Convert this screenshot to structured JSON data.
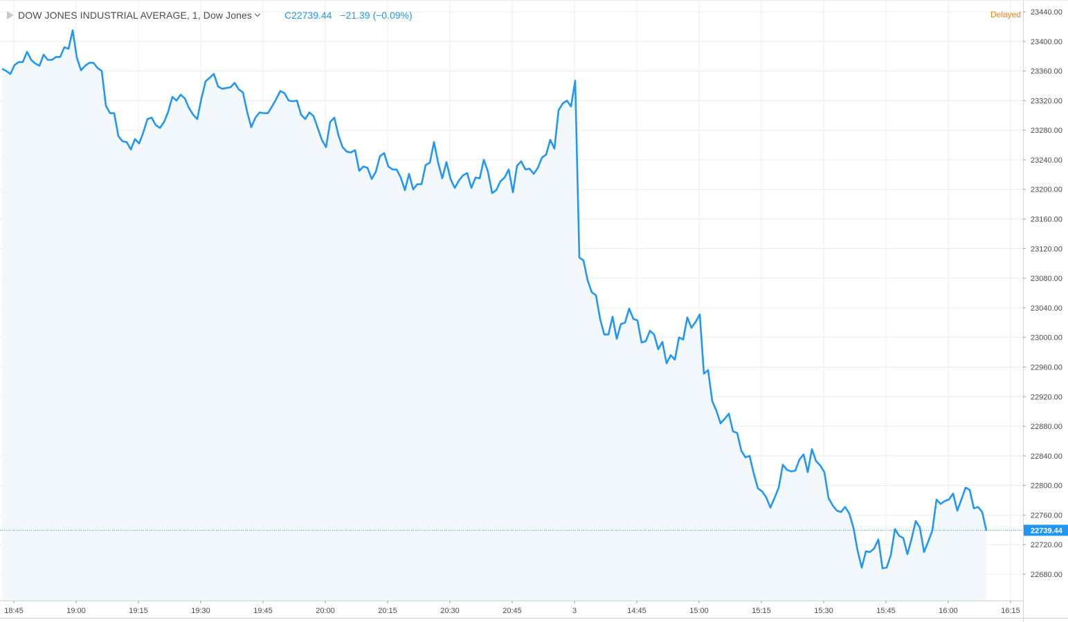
{
  "header": {
    "symbol_title": "DOW JONES INDUSTRIAL AVERAGE, 1, Dow Jones",
    "quote_close": "C22739.44",
    "quote_change": "−21.39 (−0.09%)",
    "status": "Delayed"
  },
  "colors": {
    "line": "#2196f3",
    "area": "#f3f8fd",
    "grid": "#e8ecf0",
    "price_label_bg": "#2196f3",
    "delayed": "#f57f17"
  },
  "icons": [
    "flag-icon",
    "chevron-down-icon"
  ],
  "chart_data": {
    "type": "area",
    "ylim": [
      22640,
      23460
    ],
    "y_ticks": [
      23440,
      23400,
      23360,
      23320,
      23280,
      23240,
      23200,
      23160,
      23120,
      23080,
      23040,
      23000,
      22960,
      22920,
      22880,
      22840,
      22800,
      22760,
      22720,
      22680
    ],
    "y_tick_labels": [
      "23440.00",
      "23400.00",
      "23360.00",
      "23320.00",
      "23280.00",
      "23240.00",
      "23200.00",
      "23160.00",
      "23120.00",
      "23080.00",
      "23040.00",
      "23000.00",
      "22960.00",
      "22920.00",
      "22880.00",
      "22840.00",
      "22800.00",
      "22760.00",
      "22720.00",
      "22680.00"
    ],
    "x_ticks": [
      {
        "label": "18:45",
        "i": 0
      },
      {
        "label": "19:00",
        "i": 15
      },
      {
        "label": "19:15",
        "i": 30
      },
      {
        "label": "19:30",
        "i": 45
      },
      {
        "label": "19:45",
        "i": 60
      },
      {
        "label": "20:00",
        "i": 75
      },
      {
        "label": "20:15",
        "i": 90
      },
      {
        "label": "20:30",
        "i": 105
      },
      {
        "label": "20:45",
        "i": 120
      },
      {
        "label": "3",
        "i": 135
      },
      {
        "label": "14:45",
        "i": 150
      },
      {
        "label": "15:00",
        "i": 165
      },
      {
        "label": "15:15",
        "i": 180
      },
      {
        "label": "15:30",
        "i": 195
      },
      {
        "label": "15:45",
        "i": 210
      },
      {
        "label": "16:00",
        "i": 225
      },
      {
        "label": "16:15",
        "i": 240
      }
    ],
    "series": [
      {
        "values": [
          23363,
          23360,
          23356,
          23368,
          23372,
          23372,
          23386,
          23375,
          23370,
          23367,
          23382,
          23375,
          23375,
          23379,
          23379,
          23392,
          23390,
          23415,
          23378,
          23361,
          23367,
          23371,
          23371,
          23364,
          23360,
          23313,
          23303,
          23303,
          23272,
          23265,
          23264,
          23254,
          23268,
          23262,
          23277,
          23295,
          23297,
          23287,
          23283,
          23291,
          23305,
          23325,
          23320,
          23328,
          23323,
          23310,
          23301,
          23295,
          23323,
          23346,
          23351,
          23356,
          23339,
          23336,
          23337,
          23338,
          23344,
          23335,
          23331,
          23305,
          23284,
          23297,
          23304,
          23303,
          23303,
          23312,
          23322,
          23333,
          23330,
          23320,
          23319,
          23320,
          23301,
          23295,
          23304,
          23299,
          23283,
          23267,
          23257,
          23291,
          23297,
          23273,
          23257,
          23251,
          23250,
          23253,
          23225,
          23231,
          23229,
          23214,
          23224,
          23245,
          23249,
          23231,
          23227,
          23227,
          23216,
          23199,
          23221,
          23200,
          23207,
          23207,
          23233,
          23236,
          23264,
          23236,
          23215,
          23237,
          23214,
          23202,
          23212,
          23219,
          23222,
          23202,
          23216,
          23215,
          23240,
          23224,
          23195,
          23199,
          23211,
          23216,
          23227,
          23196,
          23232,
          23238,
          23227,
          23228,
          23221,
          23229,
          23243,
          23247,
          23267,
          23255,
          23307,
          23316,
          23320,
          23312,
          23347,
          23108,
          23104,
          23077,
          23061,
          23057,
          23025,
          23004,
          23004,
          23028,
          22998,
          23018,
          23020,
          23039,
          23025,
          23023,
          22993,
          22995,
          23009,
          23004,
          22984,
          22994,
          22965,
          22976,
          22970,
          23000,
          22997,
          23027,
          23013,
          23021,
          23031,
          22951,
          22956,
          22914,
          22901,
          22884,
          22890,
          22897,
          22873,
          22871,
          22847,
          22838,
          22840,
          22816,
          22796,
          22792,
          22784,
          22770,
          22783,
          22797,
          22828,
          22821,
          22819,
          22820,
          22835,
          22842,
          22818,
          22849,
          22833,
          22827,
          22818,
          22783,
          22773,
          22766,
          22764,
          22771,
          22762,
          22743,
          22712,
          22689,
          22711,
          22710,
          22715,
          22727,
          22688,
          22689,
          22706,
          22741,
          22732,
          22729,
          22707,
          22728,
          22752,
          22743,
          22710,
          22724,
          22739,
          22781,
          22775,
          22779,
          22781,
          22789,
          22766,
          22781,
          22797,
          22794,
          22769,
          22771,
          22764,
          22739
        ]
      }
    ],
    "last_value": 22739.44,
    "last_value_label": "22739.44"
  }
}
